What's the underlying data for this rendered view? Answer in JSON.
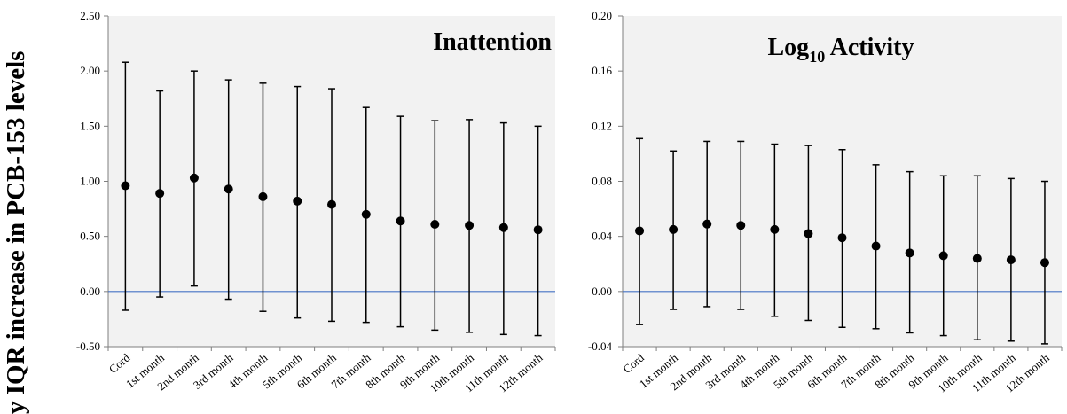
{
  "y_axis_label": "y IQR increase in PCB-153 levels",
  "chart_data": [
    {
      "type": "errorbar",
      "title": "Inattention",
      "categories": [
        "Cord",
        "1st month",
        "2nd month",
        "3rd month",
        "4th month",
        "5th month",
        "6th month",
        "7th month",
        "8th month",
        "9th month",
        "10th month",
        "11th month",
        "12th month"
      ],
      "values": [
        0.96,
        0.89,
        1.03,
        0.93,
        0.86,
        0.82,
        0.79,
        0.7,
        0.64,
        0.61,
        0.6,
        0.58,
        0.56
      ],
      "lower": [
        -0.17,
        -0.05,
        0.05,
        -0.07,
        -0.18,
        -0.24,
        -0.27,
        -0.28,
        -0.32,
        -0.35,
        -0.37,
        -0.39,
        -0.4
      ],
      "upper": [
        2.08,
        1.82,
        2.0,
        1.92,
        1.89,
        1.86,
        1.84,
        1.67,
        1.59,
        1.55,
        1.56,
        1.53,
        1.5
      ],
      "ylim": [
        -0.5,
        2.5
      ],
      "yticks": [
        "-0.50",
        "0.00",
        "0.50",
        "1.00",
        "1.50",
        "2.00",
        "2.50"
      ],
      "reference_line": 0,
      "reference_color": "#4472c4",
      "grid": false
    },
    {
      "type": "errorbar",
      "title": "Log",
      "title_sub": "10",
      "title_rest": " Activity",
      "categories": [
        "Cord",
        "1st month",
        "2nd month",
        "3rd month",
        "4th month",
        "5th month",
        "6th month",
        "7th month",
        "8th month",
        "9th month",
        "10th month",
        "11th month",
        "12th month"
      ],
      "values": [
        0.044,
        0.045,
        0.049,
        0.048,
        0.045,
        0.042,
        0.039,
        0.033,
        0.028,
        0.026,
        0.024,
        0.023,
        0.021
      ],
      "lower": [
        -0.024,
        -0.013,
        -0.011,
        -0.013,
        -0.018,
        -0.021,
        -0.026,
        -0.027,
        -0.03,
        -0.032,
        -0.035,
        -0.036,
        -0.038
      ],
      "upper": [
        0.111,
        0.102,
        0.109,
        0.109,
        0.107,
        0.106,
        0.103,
        0.092,
        0.087,
        0.084,
        0.084,
        0.082,
        0.08
      ],
      "ylim": [
        -0.04,
        0.2
      ],
      "yticks": [
        "-0.04",
        "0.00",
        "0.04",
        "0.08",
        "0.12",
        "0.16",
        "0.20"
      ],
      "reference_line": 0,
      "reference_color": "#4472c4",
      "grid": false
    }
  ]
}
